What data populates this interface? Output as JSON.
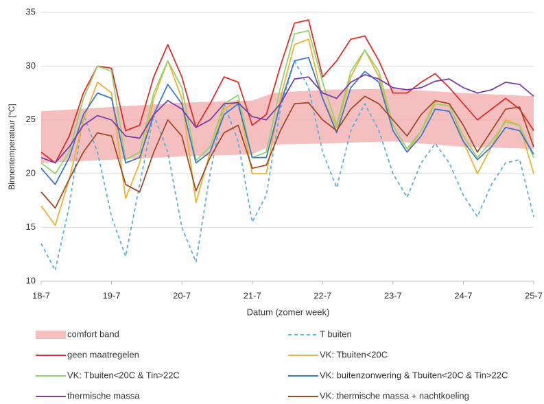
{
  "chart_data": {
    "type": "line",
    "x_label": "Datum (zomer week)",
    "y_label": "Binnentemperatuur [°C]",
    "xlim": [
      18,
      25
    ],
    "xticks": [
      {
        "value": 18,
        "label": "18-7"
      },
      {
        "value": 19,
        "label": "19-7"
      },
      {
        "value": 20,
        "label": "20-7"
      },
      {
        "value": 21,
        "label": "21-7"
      },
      {
        "value": 22,
        "label": "22-7"
      },
      {
        "value": 23,
        "label": "23-7"
      },
      {
        "value": 24,
        "label": "24-7"
      },
      {
        "value": 25,
        "label": "25-7"
      }
    ],
    "ylim": [
      10,
      35
    ],
    "yticks": [
      10,
      15,
      20,
      25,
      30,
      35
    ],
    "grid": true,
    "band": {
      "name": "comfort band",
      "color": "#f2a9ab",
      "x": [
        18,
        19,
        20,
        21,
        21.3,
        22,
        23,
        24,
        25
      ],
      "lower": [
        21,
        21.3,
        21.6,
        21.8,
        22.7,
        22.8,
        23,
        22.5,
        22.3
      ],
      "upper": [
        25.8,
        26.2,
        26.6,
        26.8,
        27.5,
        27.8,
        27.9,
        27.5,
        27.2
      ]
    },
    "x": [
      18,
      18.2,
      18.4,
      18.6,
      18.8,
      19,
      19.2,
      19.4,
      19.6,
      19.8,
      20,
      20.2,
      20.4,
      20.6,
      20.8,
      21,
      21.2,
      21.4,
      21.6,
      21.8,
      22,
      22.2,
      22.4,
      22.6,
      22.8,
      23,
      23.2,
      23.4,
      23.6,
      23.8,
      24,
      24.2,
      24.4,
      24.6,
      24.8,
      25
    ],
    "series": [
      {
        "name": "T buiten",
        "color": "#5aaee0",
        "dash": true,
        "values": [
          13.5,
          11,
          17,
          25.5,
          22,
          16,
          12.3,
          19,
          25.5,
          22,
          15,
          11.8,
          20,
          26.5,
          23,
          15.5,
          18,
          26,
          30.5,
          28,
          22,
          18.7,
          24,
          26.5,
          24,
          20,
          17.8,
          21,
          22.8,
          21,
          18,
          16,
          19,
          21,
          21.3,
          16
        ]
      },
      {
        "name": "geen maatregelen",
        "color": "#e02c2c",
        "values": [
          22,
          21,
          23.5,
          27.5,
          30,
          29.8,
          24,
          24.5,
          29,
          32,
          29,
          24.3,
          26.5,
          29,
          28.5,
          24.5,
          25.5,
          30,
          34,
          34.3,
          29,
          30.5,
          32.5,
          32.8,
          30.5,
          27.5,
          27.5,
          28.5,
          29.3,
          28,
          26.5,
          25,
          26,
          27,
          26,
          24
        ]
      },
      {
        "name": "VK: Tbuiten<20C",
        "color": "#f0b030",
        "values": [
          17,
          15.2,
          19.5,
          25,
          28.5,
          27.5,
          17.7,
          21,
          27,
          30.5,
          27,
          17.3,
          22,
          26,
          26.8,
          20,
          20,
          27,
          32,
          32.5,
          27,
          24.3,
          29,
          31.5,
          29,
          24,
          22,
          24,
          26.8,
          26.5,
          23,
          20,
          22.5,
          25,
          24.5,
          20
        ]
      },
      {
        "name": "VK: Tbuiten<20C & Tin>22C",
        "color": "#92d36e",
        "values": [
          21,
          20,
          22,
          27,
          30,
          29.5,
          21.3,
          22,
          27.5,
          30.5,
          28,
          21.2,
          22.5,
          26.5,
          27.3,
          21.5,
          22,
          28,
          33,
          33.3,
          28.5,
          24.5,
          29.5,
          31.5,
          29.5,
          24.5,
          22.3,
          24,
          26.5,
          26.3,
          23.5,
          21.5,
          23,
          24.8,
          24.5,
          21.5
        ]
      },
      {
        "name": "VK: buitenzonwering & Tbuiten<20C & Tin>22C",
        "color": "#3a78d0",
        "values": [
          20.5,
          19,
          21.5,
          25.5,
          27.5,
          27,
          21,
          21.5,
          25.5,
          28.3,
          26.5,
          21,
          22,
          25.5,
          26.5,
          21.5,
          21.5,
          26.5,
          30.5,
          30.8,
          27,
          23.8,
          28,
          29.5,
          28.5,
          24,
          22,
          23.5,
          26,
          25.8,
          23,
          21.3,
          22.5,
          24.3,
          24,
          21.8
        ]
      },
      {
        "name": "thermische massa",
        "color": "#7a3fa8",
        "values": [
          21.5,
          21,
          22.5,
          24.5,
          25.4,
          25,
          23.5,
          23.3,
          25.5,
          26.8,
          26,
          24.3,
          25,
          26.5,
          26.6,
          25.3,
          25,
          26.5,
          28.8,
          29,
          27.5,
          27,
          28.5,
          29.2,
          28.8,
          28,
          27.8,
          28,
          28.6,
          28.8,
          28,
          27.5,
          27.8,
          28.5,
          28.3,
          27.2
        ]
      },
      {
        "name": "VK: thermische massa + nachtkoeling",
        "color": "#a04a28",
        "values": [
          18.3,
          16.8,
          19.5,
          22,
          23.8,
          23.5,
          19,
          18.3,
          22,
          25,
          23.5,
          18.4,
          21.5,
          23.8,
          24.5,
          20.5,
          20.8,
          24,
          26.5,
          26.6,
          25,
          24,
          26,
          27.2,
          26.5,
          25,
          23.5,
          25.5,
          26.8,
          26.5,
          24.5,
          22,
          24,
          26,
          26.2,
          22.5
        ]
      }
    ]
  }
}
